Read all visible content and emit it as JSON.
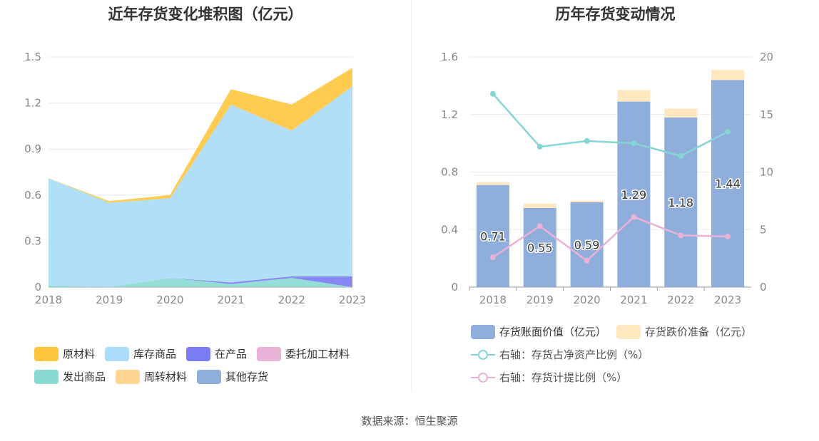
{
  "left": {
    "title": "近年存货变化堆积图（亿元）",
    "legend": [
      {
        "label": "原材料",
        "color": "#ffc53d"
      },
      {
        "label": "库存商品",
        "color": "#a8dcf7"
      },
      {
        "label": "在产品",
        "color": "#7b7bf3"
      },
      {
        "label": "委托加工材料",
        "color": "#eab2d6"
      },
      {
        "label": "发出商品",
        "color": "#8ad9d3"
      },
      {
        "label": "周转材料",
        "color": "#ffd591"
      },
      {
        "label": "其他存货",
        "color": "#8faedc"
      }
    ]
  },
  "right": {
    "title": "历年存货变动情况",
    "legend": [
      {
        "label": "存货账面价值（亿元）",
        "color": "#8faedc",
        "kind": "bar"
      },
      {
        "label": "存货跌价准备（亿元）",
        "color": "#ffe7bf",
        "kind": "bar"
      },
      {
        "label": "右轴：存货占净资产比例（%）",
        "color": "#86d5d6",
        "kind": "line"
      },
      {
        "label": "右轴：存货计提比例（%）",
        "color": "#eab2d6",
        "kind": "line"
      }
    ]
  },
  "source": "数据来源：恒生聚源",
  "chart_data": [
    {
      "type": "area",
      "stacked": true,
      "title": "近年存货变化堆积图（亿元）",
      "x": [
        "2018",
        "2019",
        "2020",
        "2021",
        "2022",
        "2023"
      ],
      "ylim": [
        0,
        1.5
      ],
      "yticks": [
        0,
        0.3,
        0.6,
        0.9,
        1.2,
        1.5
      ],
      "ytick_labels": [
        "0",
        "0.3",
        "0.6",
        "0.9",
        "1.2",
        "1.5"
      ],
      "grid": true,
      "legend_position": "bottom",
      "series": [
        {
          "name": "发出商品",
          "color": "#8ad9d3",
          "values": [
            0.01,
            0.0,
            0.06,
            0.02,
            0.06,
            0.0
          ]
        },
        {
          "name": "委托加工材料",
          "color": "#eab2d6",
          "values": [
            0.0,
            0.0,
            0.0,
            0.0,
            0.0,
            0.0
          ]
        },
        {
          "name": "在产品",
          "color": "#7b7bf3",
          "values": [
            0.0,
            0.0,
            0.0,
            0.01,
            0.01,
            0.07
          ]
        },
        {
          "name": "库存商品",
          "color": "#a8dcf7",
          "values": [
            0.7,
            0.55,
            0.52,
            1.16,
            0.95,
            1.24
          ]
        },
        {
          "name": "原材料",
          "color": "#ffc53d",
          "values": [
            0.0,
            0.01,
            0.02,
            0.1,
            0.17,
            0.12
          ]
        },
        {
          "name": "周转材料",
          "color": "#ffd591",
          "values": [
            0.0,
            0.0,
            0.0,
            0.0,
            0.0,
            0.0
          ]
        },
        {
          "name": "其他存货",
          "color": "#8faedc",
          "values": [
            0.0,
            0.0,
            0.0,
            0.0,
            0.0,
            0.0
          ]
        }
      ]
    },
    {
      "type": "bar",
      "stacked": true,
      "title": "历年存货变动情况",
      "categories": [
        "2018",
        "2019",
        "2020",
        "2021",
        "2022",
        "2023"
      ],
      "ylim": [
        0,
        1.6
      ],
      "yticks": [
        0,
        0.4,
        0.8,
        1.2,
        1.6
      ],
      "ytick_labels": [
        "0",
        "0.4",
        "0.8",
        "1.2",
        "1.6"
      ],
      "y2lim": [
        0,
        20
      ],
      "y2ticks": [
        0,
        5,
        10,
        15,
        20
      ],
      "y2tick_labels": [
        "0",
        "5",
        "10",
        "15",
        "20"
      ],
      "grid": true,
      "legend_position": "bottom",
      "series": [
        {
          "name": "存货账面价值（亿元）",
          "color": "#8faedc",
          "values": [
            0.71,
            0.55,
            0.59,
            1.29,
            1.18,
            1.44
          ],
          "labels": [
            "0.71",
            "0.55",
            "0.59",
            "1.29",
            "1.18",
            "1.44"
          ]
        },
        {
          "name": "存货跌价准备（亿元）",
          "color": "#ffe7bf",
          "values": [
            0.02,
            0.03,
            0.01,
            0.08,
            0.06,
            0.07
          ]
        }
      ],
      "lines": [
        {
          "name": "右轴：存货占净资产比例（%）",
          "color": "#86d5d6",
          "axis": "right",
          "values": [
            16.8,
            12.2,
            12.7,
            12.5,
            11.4,
            13.5
          ]
        },
        {
          "name": "右轴：存货计提比例（%）",
          "color": "#eab2d6",
          "axis": "right",
          "values": [
            2.6,
            5.3,
            2.3,
            6.1,
            4.5,
            4.4
          ]
        }
      ]
    }
  ]
}
